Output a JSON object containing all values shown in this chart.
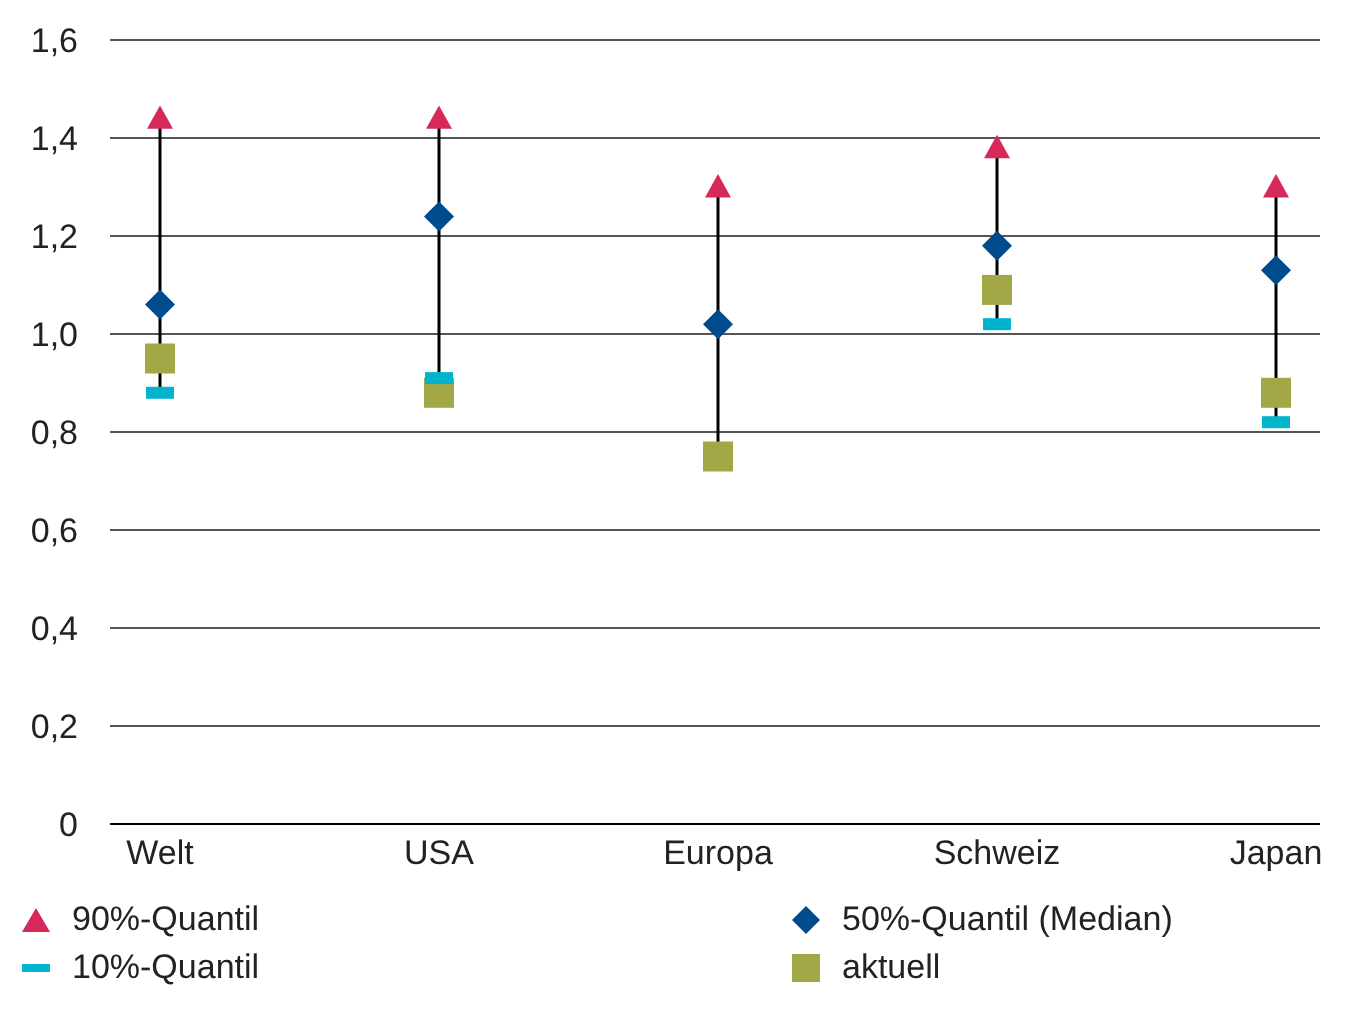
{
  "chart_data": {
    "type": "scatter",
    "categories": [
      "Welt",
      "USA",
      "Europa",
      "Schweiz",
      "Japan"
    ],
    "series": [
      {
        "name": "90%-Quantil",
        "color": "#d6295a",
        "marker": "triangle",
        "values": [
          1.44,
          1.44,
          1.3,
          1.38,
          1.3
        ]
      },
      {
        "name": "50%-Quantil (Median)",
        "color": "#004b8d",
        "marker": "diamond",
        "values": [
          1.06,
          1.24,
          1.02,
          1.18,
          1.13
        ]
      },
      {
        "name": "10%-Quantil",
        "color": "#00b4cc",
        "values": [
          0.88,
          0.91,
          null,
          1.02,
          0.82
        ]
      },
      {
        "name": "aktuell",
        "color": "#a3a846",
        "marker": "square",
        "values": [
          0.95,
          0.88,
          0.75,
          1.09,
          0.88
        ]
      }
    ],
    "ylim": [
      0,
      1.6
    ],
    "yticks": [
      0,
      {
        "value": 0.2,
        "label": "0,2"
      },
      {
        "value": 0.4,
        "label": "0,4"
      },
      {
        "value": 0.6,
        "label": "0,6"
      },
      {
        "value": 0.8,
        "label": "0,8"
      },
      {
        "value": 1,
        "label": "1,0"
      },
      {
        "value": 1.2,
        "label": "1,2"
      },
      {
        "value": 1.4,
        "label": "1,4"
      },
      {
        "value": 1.6,
        "label": "1,6"
      }
    ],
    "grid": "y",
    "legend": "bottom"
  }
}
